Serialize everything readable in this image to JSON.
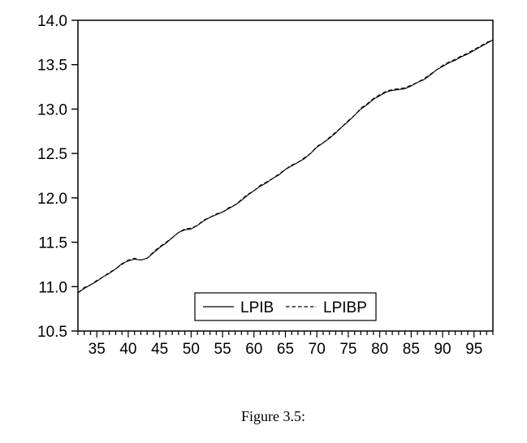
{
  "figure": {
    "caption": "Figure 3.5:",
    "background_color": "#ffffff",
    "line_color": "#000000"
  },
  "legend": {
    "items": [
      {
        "label": "LPIB",
        "style": "solid"
      },
      {
        "label": "LPIBP",
        "style": "dashed"
      }
    ]
  },
  "chart_data": {
    "type": "line",
    "title": "",
    "xlabel": "",
    "ylabel": "",
    "grid": false,
    "legend_position": "inside-bottom-center",
    "xlim": [
      32,
      98
    ],
    "ylim": [
      10.5,
      14.0
    ],
    "x_minor_tick_interval": 1,
    "x_major_tick_interval": 5,
    "y_ticks": [
      {
        "value": 14.0,
        "label": "14.0"
      },
      {
        "value": 13.5,
        "label": "13.5"
      },
      {
        "value": 13.0,
        "label": "13.0"
      },
      {
        "value": 12.5,
        "label": "12.5"
      },
      {
        "value": 12.0,
        "label": "12.0"
      },
      {
        "value": 11.5,
        "label": "11.5"
      },
      {
        "value": 11.0,
        "label": "11.0"
      },
      {
        "value": 10.5,
        "label": "10.5"
      }
    ],
    "x_tick_labels": [
      {
        "value": 35,
        "label": "35"
      },
      {
        "value": 40,
        "label": "40"
      },
      {
        "value": 45,
        "label": "45"
      },
      {
        "value": 50,
        "label": "50"
      },
      {
        "value": 55,
        "label": "55"
      },
      {
        "value": 60,
        "label": "60"
      },
      {
        "value": 65,
        "label": "65"
      },
      {
        "value": 70,
        "label": "70"
      },
      {
        "value": 75,
        "label": "75"
      },
      {
        "value": 80,
        "label": "80"
      },
      {
        "value": 85,
        "label": "85"
      },
      {
        "value": 90,
        "label": "90"
      },
      {
        "value": 95,
        "label": "95"
      }
    ],
    "x": [
      32,
      33,
      34,
      35,
      36,
      37,
      38,
      39,
      40,
      41,
      42,
      43,
      44,
      45,
      46,
      47,
      48,
      49,
      50,
      51,
      52,
      53,
      54,
      55,
      56,
      57,
      58,
      59,
      60,
      61,
      62,
      63,
      64,
      65,
      66,
      67,
      68,
      69,
      70,
      71,
      72,
      73,
      74,
      75,
      76,
      77,
      78,
      79,
      80,
      81,
      82,
      83,
      84,
      85,
      86,
      87,
      88,
      89,
      90,
      91,
      92,
      93,
      94,
      95,
      96,
      97,
      98
    ],
    "series": [
      {
        "name": "LPIB",
        "style": "solid",
        "values": [
          10.93,
          10.98,
          11.02,
          11.06,
          11.11,
          11.15,
          11.2,
          11.26,
          11.29,
          11.31,
          11.3,
          11.32,
          11.38,
          11.44,
          11.49,
          11.55,
          11.61,
          11.64,
          11.65,
          11.69,
          11.74,
          11.78,
          11.81,
          11.84,
          11.88,
          11.92,
          11.97,
          12.03,
          12.08,
          12.13,
          12.17,
          12.22,
          12.26,
          12.32,
          12.36,
          12.4,
          12.44,
          12.5,
          12.57,
          12.62,
          12.67,
          12.73,
          12.8,
          12.86,
          12.93,
          13.0,
          13.05,
          13.11,
          13.15,
          13.19,
          13.21,
          13.22,
          13.23,
          13.26,
          13.3,
          13.33,
          13.38,
          13.44,
          13.48,
          13.52,
          13.55,
          13.59,
          13.62,
          13.66,
          13.7,
          13.74,
          13.78
        ]
      },
      {
        "name": "LPIBP",
        "style": "dashed",
        "values": [
          10.93,
          10.99,
          11.02,
          11.07,
          11.11,
          11.16,
          11.2,
          11.25,
          11.3,
          11.32,
          11.3,
          11.32,
          11.39,
          11.45,
          11.5,
          11.55,
          11.61,
          11.65,
          11.66,
          11.69,
          11.75,
          11.78,
          11.82,
          11.84,
          11.89,
          11.92,
          11.98,
          12.04,
          12.08,
          12.14,
          12.18,
          12.22,
          12.27,
          12.32,
          12.37,
          12.4,
          12.45,
          12.5,
          12.58,
          12.62,
          12.68,
          12.74,
          12.8,
          12.87,
          12.93,
          13.01,
          13.06,
          13.12,
          13.16,
          13.2,
          13.22,
          13.23,
          13.24,
          13.27,
          13.3,
          13.34,
          13.39,
          13.44,
          13.49,
          13.53,
          13.56,
          13.6,
          13.63,
          13.67,
          13.71,
          13.75,
          13.78
        ]
      }
    ]
  }
}
